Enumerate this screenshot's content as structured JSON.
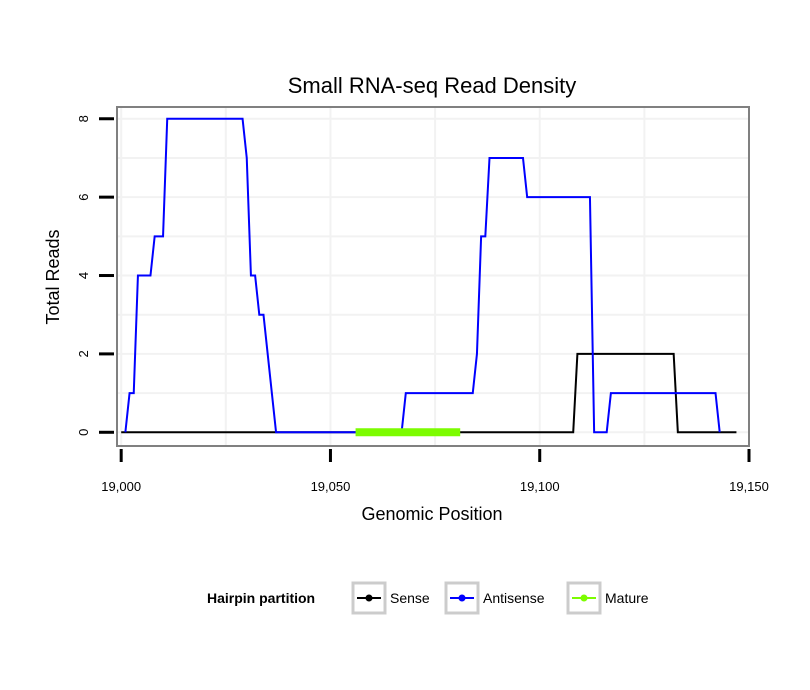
{
  "chart_data": {
    "type": "line",
    "title": "Small RNA-seq Read Density",
    "xlabel": "Genomic Position",
    "ylabel": "Total Reads",
    "xlim": [
      18999,
      19150
    ],
    "ylim": [
      -0.35,
      8.3
    ],
    "x_ticks": [
      19000,
      19050,
      19100,
      19150
    ],
    "x_tick_labels": [
      "19,000",
      "19,050",
      "19,100",
      "19,150"
    ],
    "y_ticks": [
      0,
      2,
      4,
      6,
      8
    ],
    "y_tick_labels": [
      "0",
      "2",
      "4",
      "6",
      "8"
    ],
    "grid": true,
    "legend_position": "bottom",
    "legend_title": "Hairpin partition",
    "series": [
      {
        "name": "Sense",
        "color": "#000000",
        "x": [
          19000,
          19108,
          19109,
          19132,
          19133,
          19147
        ],
        "y": [
          0,
          0,
          2,
          2,
          0,
          0
        ]
      },
      {
        "name": "Antisense",
        "color": "#0000ff",
        "x": [
          19001,
          19002,
          19002.5,
          19003,
          19004,
          19007,
          19008,
          19010,
          19011,
          19029,
          19030,
          19031,
          19032,
          19033,
          19034,
          19036,
          19037,
          19038,
          19067,
          19068,
          19084,
          19085,
          19086,
          19087,
          19088,
          19096,
          19097,
          19112,
          19113,
          19116,
          19117,
          19142,
          19143
        ],
        "y": [
          0,
          1,
          1,
          1,
          4,
          4,
          5,
          5,
          8,
          8,
          7,
          4,
          4,
          3,
          3,
          1,
          0,
          0,
          0,
          1,
          1,
          2,
          5,
          5,
          7,
          7,
          6,
          6,
          0,
          0,
          1,
          1,
          0
        ]
      },
      {
        "name": "Mature",
        "color": "#7cfc00",
        "x": [
          19056,
          19081
        ],
        "y": [
          0,
          0
        ]
      }
    ]
  },
  "colors": {
    "panel_border": "#808080",
    "grid": "#f2f2f2",
    "legend_key_border": "#cccccc"
  }
}
